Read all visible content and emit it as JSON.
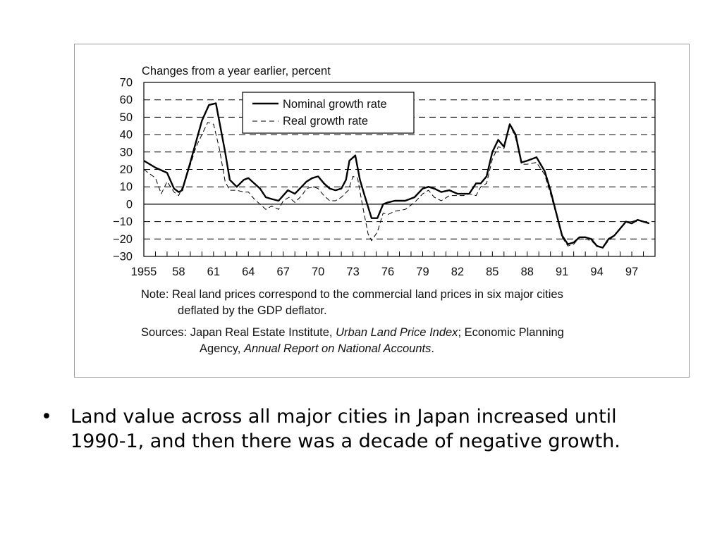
{
  "chart_data": {
    "type": "line",
    "title": "Changes from a year earlier, percent",
    "ylim": [
      -30,
      70
    ],
    "yticks": [
      70,
      60,
      50,
      40,
      30,
      20,
      10,
      0,
      -10,
      -20,
      -30
    ],
    "ytick_labels": [
      "70",
      "60",
      "50",
      "40",
      "30",
      "20",
      "10",
      "0",
      "−10",
      "−20",
      "−30"
    ],
    "xlim": [
      1955,
      1999
    ],
    "xticks": [
      1955,
      1958,
      1961,
      1964,
      1967,
      1970,
      1973,
      1976,
      1979,
      1982,
      1985,
      1988,
      1991,
      1994,
      1997
    ],
    "xtick_labels": [
      "1955",
      "58",
      "61",
      "64",
      "67",
      "70",
      "73",
      "76",
      "79",
      "82",
      "85",
      "88",
      "91",
      "94",
      "97"
    ],
    "grid": "dashed horizontal",
    "legend_position": "top-center",
    "series": [
      {
        "name": "Nominal growth rate",
        "style": "solid",
        "color": "#000000",
        "points": [
          [
            1955,
            25
          ],
          [
            1956,
            21
          ],
          [
            1957,
            18
          ],
          [
            1957.6,
            9
          ],
          [
            1958,
            7
          ],
          [
            1958.3,
            8
          ],
          [
            1959,
            24
          ],
          [
            1960,
            48
          ],
          [
            1960.6,
            57
          ],
          [
            1961.2,
            58
          ],
          [
            1962,
            30
          ],
          [
            1962.4,
            14
          ],
          [
            1963,
            10
          ],
          [
            1963.6,
            14
          ],
          [
            1964,
            15
          ],
          [
            1964.5,
            12
          ],
          [
            1965,
            9
          ],
          [
            1965.5,
            4
          ],
          [
            1966,
            3
          ],
          [
            1966.6,
            2
          ],
          [
            1967,
            5
          ],
          [
            1967.4,
            8
          ],
          [
            1968,
            6
          ],
          [
            1969,
            13
          ],
          [
            1969.5,
            15
          ],
          [
            1970,
            16
          ],
          [
            1970.5,
            12
          ],
          [
            1971,
            9
          ],
          [
            1971.5,
            8
          ],
          [
            1972,
            9
          ],
          [
            1972.4,
            14
          ],
          [
            1972.7,
            25
          ],
          [
            1973.2,
            28
          ],
          [
            1973.6,
            14
          ],
          [
            1974,
            5
          ],
          [
            1974.6,
            -8
          ],
          [
            1975.1,
            -8
          ],
          [
            1975.6,
            0
          ],
          [
            1976,
            1
          ],
          [
            1976.6,
            2
          ],
          [
            1977.5,
            2
          ],
          [
            1978.3,
            4
          ],
          [
            1979,
            9
          ],
          [
            1979.5,
            10
          ],
          [
            1980,
            9
          ],
          [
            1980.6,
            7
          ],
          [
            1981.3,
            8
          ],
          [
            1982,
            6
          ],
          [
            1982.5,
            6
          ],
          [
            1983,
            6
          ],
          [
            1983.6,
            12
          ],
          [
            1984,
            12
          ],
          [
            1984.5,
            16
          ],
          [
            1985,
            30
          ],
          [
            1985.5,
            37
          ],
          [
            1986,
            33
          ],
          [
            1986.5,
            46
          ],
          [
            1987,
            40
          ],
          [
            1987.5,
            24
          ],
          [
            1988,
            25
          ],
          [
            1988.8,
            27
          ],
          [
            1989.5,
            19
          ],
          [
            1990,
            8
          ],
          [
            1990.5,
            -5
          ],
          [
            1991,
            -18
          ],
          [
            1991.5,
            -23
          ],
          [
            1992,
            -22
          ],
          [
            1992.5,
            -19
          ],
          [
            1993,
            -19
          ],
          [
            1993.5,
            -20
          ],
          [
            1994,
            -24
          ],
          [
            1994.5,
            -25
          ],
          [
            1995,
            -20
          ],
          [
            1995.5,
            -18
          ],
          [
            1996,
            -14
          ],
          [
            1996.5,
            -10
          ],
          [
            1997,
            -11
          ],
          [
            1997.5,
            -9
          ],
          [
            1998.5,
            -11
          ]
        ]
      },
      {
        "name": "Real growth rate",
        "style": "dashed",
        "color": "#000000",
        "points": [
          [
            1955,
            20
          ],
          [
            1956,
            15
          ],
          [
            1956.5,
            6
          ],
          [
            1957,
            13
          ],
          [
            1957.6,
            7
          ],
          [
            1958,
            5
          ],
          [
            1958.6,
            14
          ],
          [
            1959.5,
            33
          ],
          [
            1960.5,
            47
          ],
          [
            1961,
            46
          ],
          [
            1961.5,
            32
          ],
          [
            1962,
            13
          ],
          [
            1962.4,
            8
          ],
          [
            1963,
            8
          ],
          [
            1963.6,
            7
          ],
          [
            1964,
            7
          ],
          [
            1964.5,
            3
          ],
          [
            1965,
            0
          ],
          [
            1965.5,
            -3
          ],
          [
            1966,
            -1
          ],
          [
            1966.6,
            -3
          ],
          [
            1967,
            2
          ],
          [
            1967.5,
            4
          ],
          [
            1968,
            1
          ],
          [
            1968.6,
            5
          ],
          [
            1969,
            9
          ],
          [
            1969.6,
            10
          ],
          [
            1970,
            9
          ],
          [
            1970.5,
            5
          ],
          [
            1971,
            2
          ],
          [
            1971.5,
            2
          ],
          [
            1972,
            4
          ],
          [
            1972.6,
            8
          ],
          [
            1973,
            16
          ],
          [
            1973.4,
            15
          ],
          [
            1973.8,
            0
          ],
          [
            1974.3,
            -17
          ],
          [
            1974.6,
            -21
          ],
          [
            1975.1,
            -16
          ],
          [
            1975.6,
            -5
          ],
          [
            1976,
            -6
          ],
          [
            1976.6,
            -4
          ],
          [
            1977.5,
            -3
          ],
          [
            1978.3,
            1
          ],
          [
            1979,
            6
          ],
          [
            1979.5,
            8
          ],
          [
            1980,
            4
          ],
          [
            1980.6,
            2
          ],
          [
            1981.3,
            5
          ],
          [
            1982,
            5
          ],
          [
            1982.5,
            5
          ],
          [
            1983,
            6
          ],
          [
            1983.6,
            5
          ],
          [
            1984,
            10
          ],
          [
            1984.5,
            12
          ],
          [
            1985,
            26
          ],
          [
            1985.5,
            33
          ],
          [
            1986,
            32
          ],
          [
            1986.5,
            46
          ],
          [
            1987,
            38
          ],
          [
            1987.5,
            23
          ],
          [
            1988,
            23
          ],
          [
            1988.8,
            24
          ],
          [
            1989.5,
            17
          ],
          [
            1990,
            6
          ],
          [
            1990.5,
            -6
          ],
          [
            1991,
            -19
          ],
          [
            1991.5,
            -24
          ],
          [
            1992,
            -23
          ],
          [
            1992.5,
            -19
          ],
          [
            1993,
            -20
          ],
          [
            1993.5,
            -21
          ],
          [
            1994,
            -24
          ],
          [
            1994.5,
            -25
          ],
          [
            1995,
            -21
          ],
          [
            1995.5,
            -18
          ],
          [
            1996,
            -14
          ],
          [
            1996.5,
            -10
          ],
          [
            1997,
            -10
          ],
          [
            1997.5,
            -9
          ],
          [
            1998.5,
            -11
          ]
        ]
      }
    ]
  },
  "notes": {
    "note_line1": "Note: Real land prices correspond to the commercial land prices in six major cities",
    "note_line2": "deflated by the GDP deflator.",
    "sources_prefix": "Sources: Japan Real Estate Institute, ",
    "sources_title1": "Urban Land Price Index",
    "sources_mid": "; Economic Planning",
    "sources_line2_prefix": "Agency, ",
    "sources_title2": "Annual Report on National Accounts",
    "sources_end": "."
  },
  "slide": {
    "bullet_symbol": "•",
    "bullet_text": "Land value across all major cities in Japan increased until 1990-1, and then there was a decade of negative growth."
  }
}
